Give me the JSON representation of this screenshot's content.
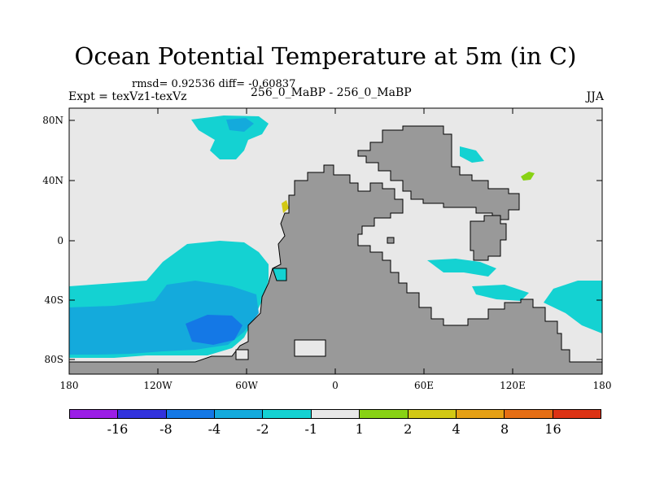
{
  "title": "Ocean Potential Temperature at 5m (in C)",
  "stats": "rmsd= 0.92536 diff= -0.60837",
  "expt": "Expt = texVz1-texVz",
  "run_label": "256_0_MaBP - 256_0_MaBP",
  "season": "JJA",
  "lat_labels": [
    "80N",
    "40N",
    "0",
    "40S",
    "80S"
  ],
  "lon_labels": [
    "180",
    "120W",
    "60W",
    "0",
    "60E",
    "120E",
    "180"
  ],
  "colorbar": {
    "colors": [
      "#9b1ee6",
      "#3232dc",
      "#1478e6",
      "#14aadc",
      "#14d2d2",
      "#e8e8e8",
      "#88d214",
      "#d2c814",
      "#e6a014",
      "#e66e14",
      "#dc3214"
    ],
    "labels": [
      "-16",
      "-8",
      "-4",
      "-2",
      "-1",
      "1",
      "2",
      "4",
      "8",
      "16"
    ]
  },
  "colors": {
    "land": "#999999",
    "ocean_neutral": "#e8e8e8",
    "cool_1": "#14d2d2",
    "cool_2": "#14aadc",
    "cool_3": "#1478e6",
    "warm_1": "#88d214",
    "warm_2": "#d2c814"
  }
}
